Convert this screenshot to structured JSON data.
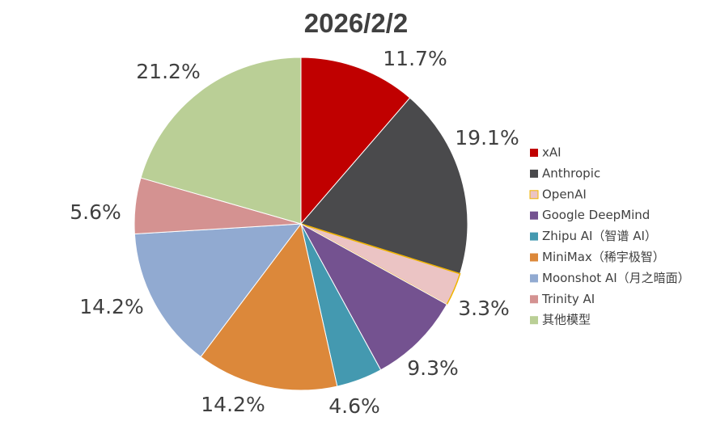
{
  "chart_data": {
    "type": "pie",
    "title": "2026/2/2",
    "legend_position": "right",
    "slices": [
      {
        "name": "xAI",
        "value": 11.7,
        "label": "11.7%",
        "color": "#c00000"
      },
      {
        "name": "Anthropic",
        "value": 19.1,
        "label": "19.1%",
        "color": "#4a4a4c"
      },
      {
        "name": "OpenAI",
        "value": 3.3,
        "label": "3.3%",
        "color": "#ebc4c4",
        "edge_color": "#f0b400"
      },
      {
        "name": "Google DeepMind",
        "value": 9.3,
        "label": "9.3%",
        "color": "#745290"
      },
      {
        "name": "Zhipu AI（智谱 AI）",
        "value": 4.6,
        "label": "4.6%",
        "color": "#4499b0"
      },
      {
        "name": "MiniMax（稀宇极智）",
        "value": 14.2,
        "label": "14.2%",
        "color": "#dc883a"
      },
      {
        "name": "Moonshot AI（月之暗面）",
        "value": 14.2,
        "label": "14.2%",
        "color": "#91aad1"
      },
      {
        "name": "Trinity AI",
        "value": 5.6,
        "label": "5.6%",
        "color": "#d49291"
      },
      {
        "name": "其他模型",
        "value": 21.2,
        "label": "21.2%",
        "color": "#bacf96"
      }
    ]
  }
}
